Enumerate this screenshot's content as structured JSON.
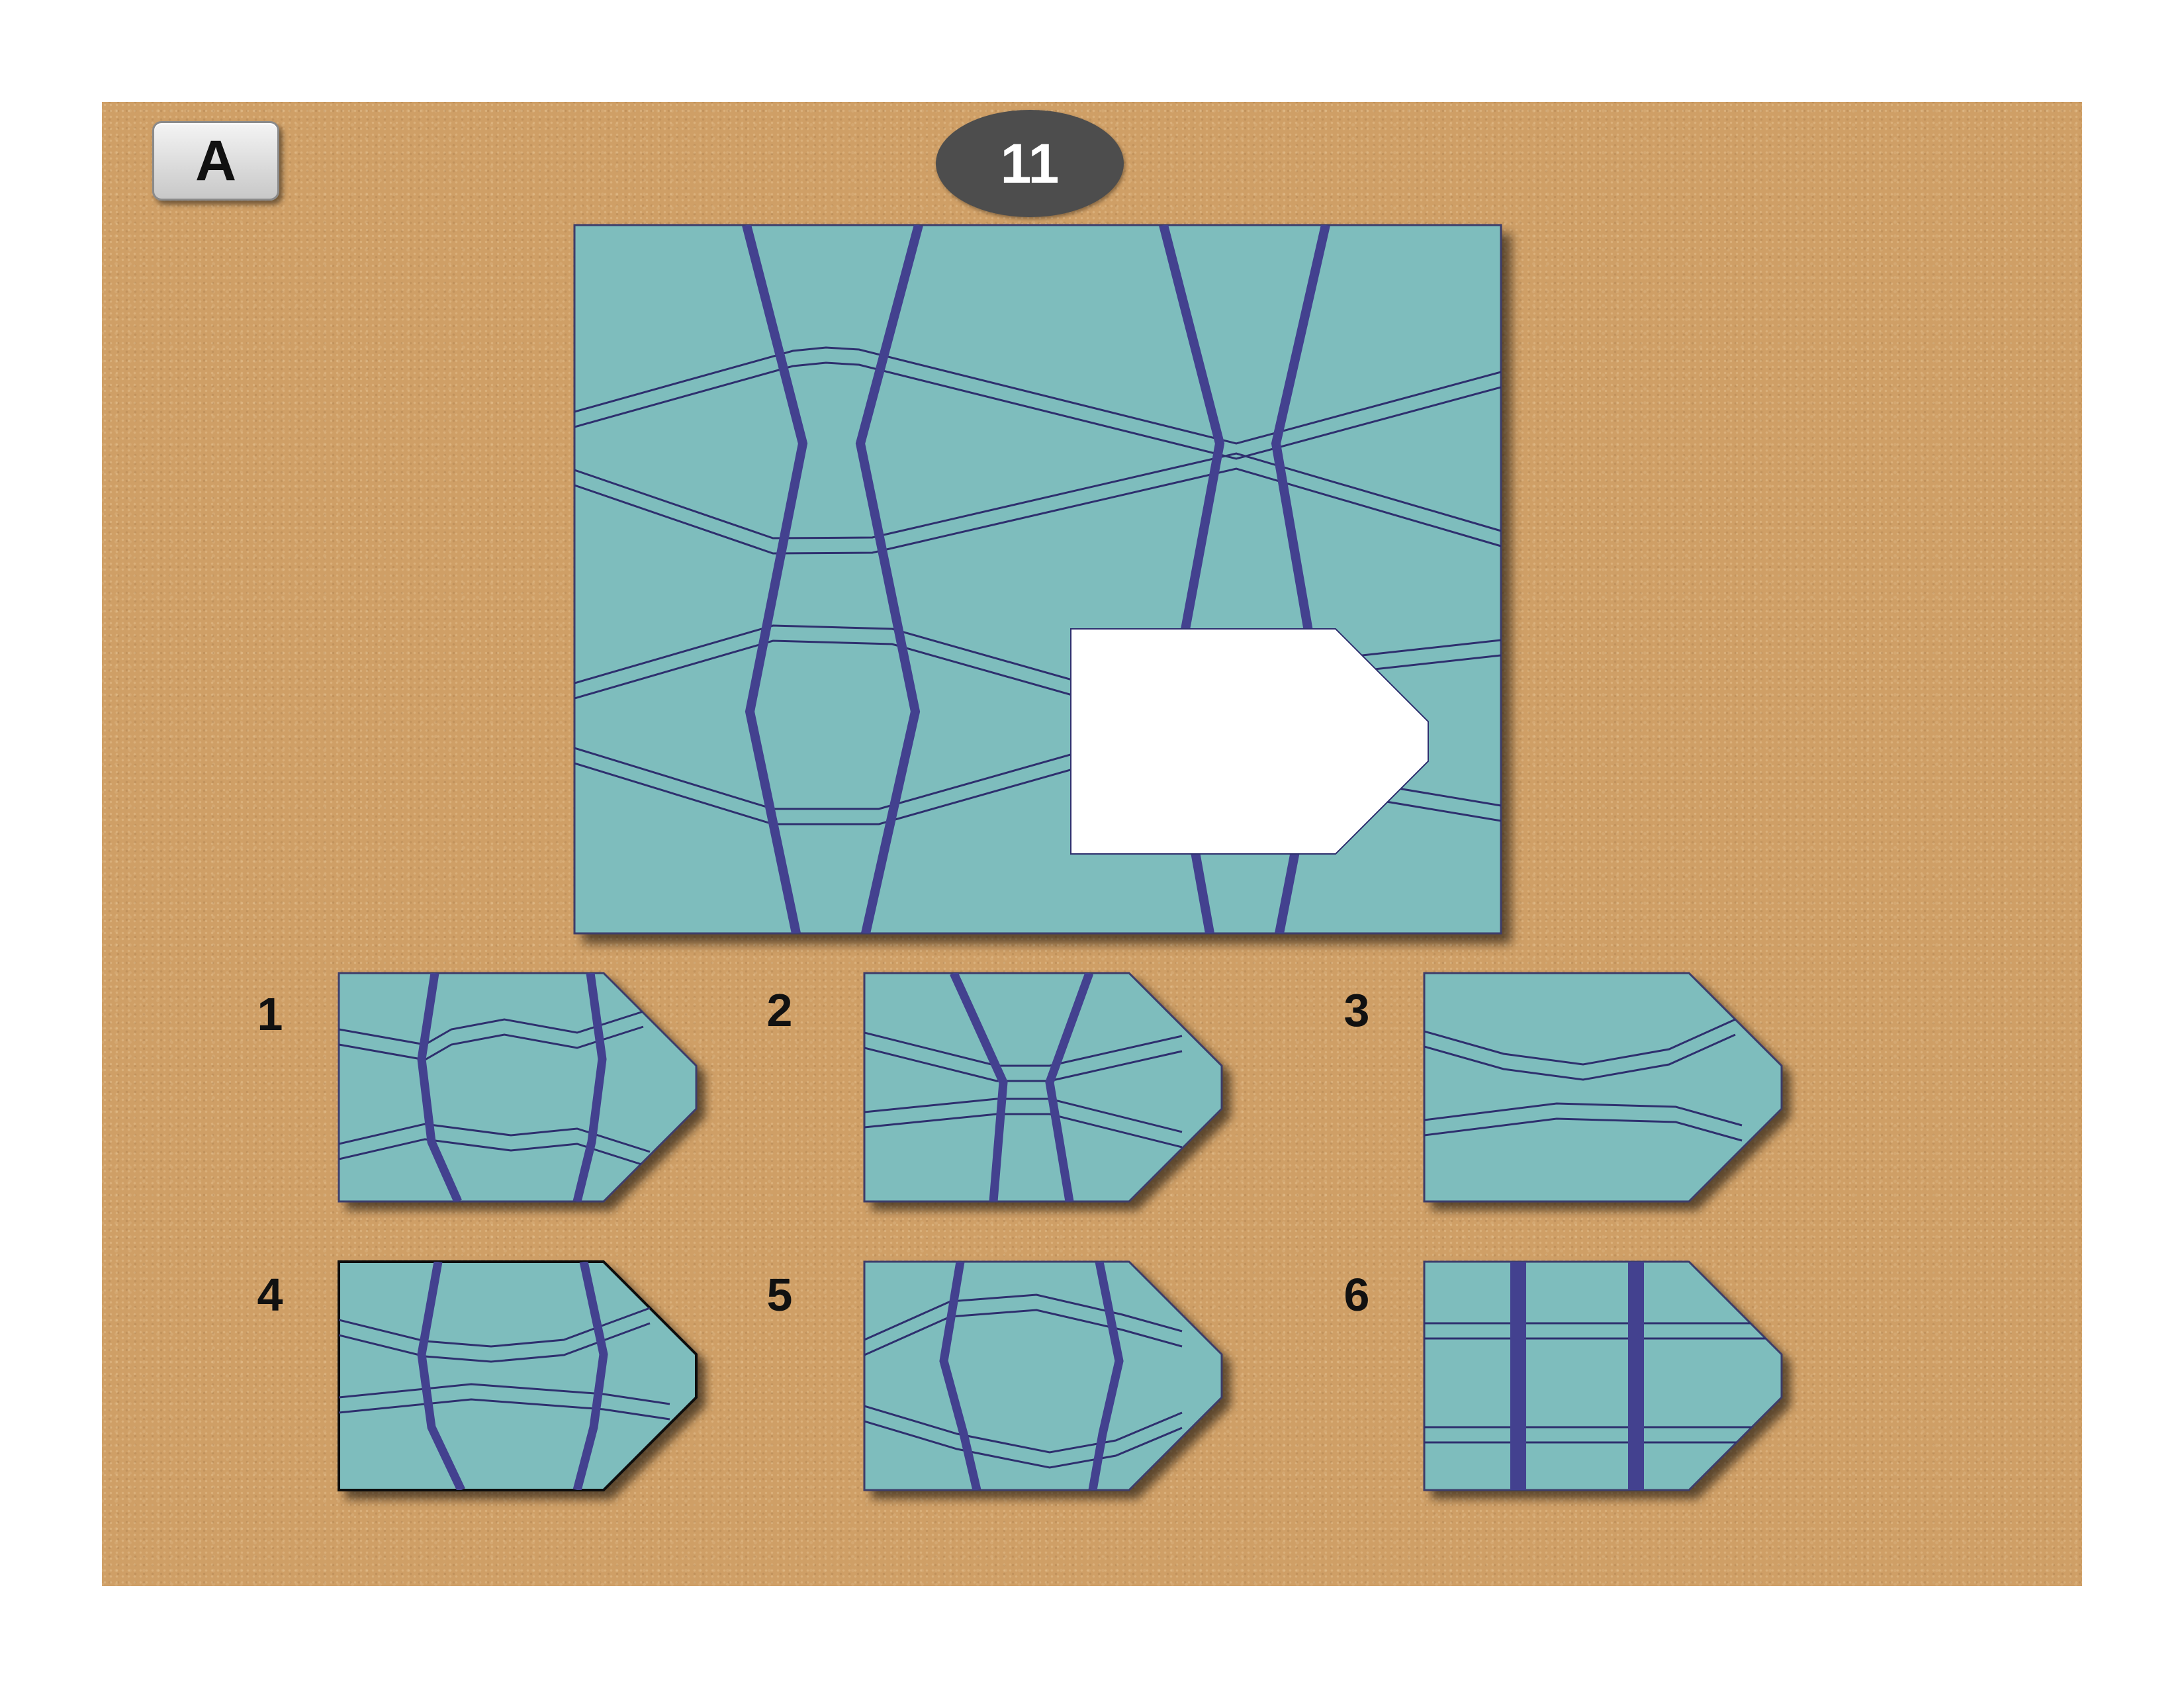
{
  "form_label": "A",
  "question_number": "11",
  "colors": {
    "background": "#cf9f66",
    "panel_fill": "#7ebdbd",
    "thick_line": "#43418f",
    "thin_line": "#2e2f6e",
    "missing_piece": "#ffffff",
    "badge": "#4d4d4d"
  },
  "options": [
    {
      "number": "1"
    },
    {
      "number": "2"
    },
    {
      "number": "3"
    },
    {
      "number": "4"
    },
    {
      "number": "5"
    },
    {
      "number": "6"
    }
  ]
}
